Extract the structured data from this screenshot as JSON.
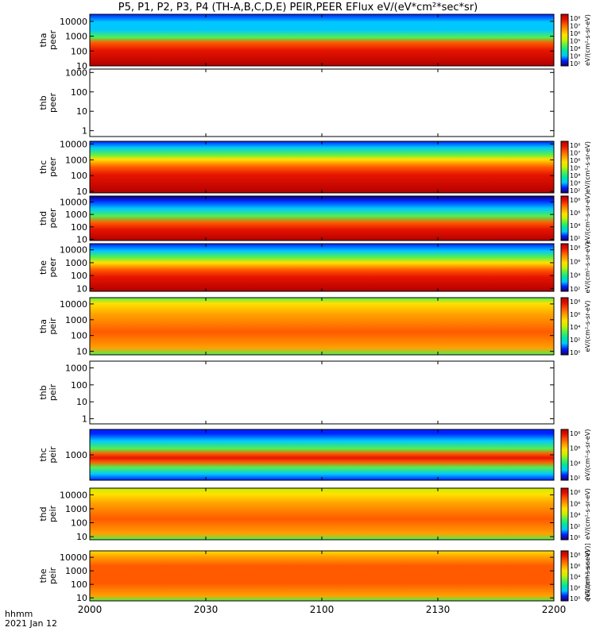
{
  "chart_data": {
    "type": "heatmap",
    "title": "P5, P1, P2, P3, P4 (TH-A,B,C,D,E) PEIR,PEER EFlux eV/(eV*cm²*sec*sr)",
    "x_axis": {
      "range": [
        "20:00",
        "22:00"
      ],
      "tick_labels": [
        "2000",
        "2030",
        "2100",
        "2130",
        "2200"
      ],
      "tick_minutes": [
        0,
        30,
        60,
        90,
        120
      ]
    },
    "annotations": {
      "time_label": "hhmm",
      "date_label": "2021 Jan 12"
    },
    "panels": [
      {
        "probe": "tha",
        "species": "peer",
        "ylabel": [
          "tha",
          "peer"
        ],
        "has_data": true,
        "y_log_range": [
          10,
          30000
        ],
        "yticks": [
          "10",
          "100",
          "1000",
          "10000"
        ],
        "colorbar": {
          "label": "eV/(cm²-s-sr-eV)",
          "ticks": [
            "10²",
            "10³",
            "10⁴",
            "10⁵",
            "10⁶",
            "10⁷",
            "10⁸"
          ]
        }
      },
      {
        "probe": "thb",
        "species": "peer",
        "ylabel": [
          "thb",
          "peer"
        ],
        "has_data": false,
        "y_log_range": [
          0.5,
          1500
        ],
        "yticks": [
          "1",
          "10",
          "100",
          "1000"
        ]
      },
      {
        "probe": "thc",
        "species": "peer",
        "ylabel": [
          "thc",
          "peer"
        ],
        "has_data": true,
        "y_log_range": [
          8,
          15000
        ],
        "yticks": [
          "10",
          "100",
          "1000",
          "10000"
        ],
        "colorbar": {
          "label": "eV/(cm²-s-sr-eV)",
          "ticks": [
            "10²",
            "10³",
            "10⁴",
            "10⁵",
            "10⁶",
            "10⁷",
            "10⁸"
          ]
        }
      },
      {
        "probe": "thd",
        "species": "peer",
        "ylabel": [
          "thd",
          "peer"
        ],
        "has_data": true,
        "y_log_range": [
          8,
          30000
        ],
        "yticks": [
          "10",
          "100",
          "1000",
          "10000"
        ],
        "colorbar": {
          "label": "eV/(cm²-s-sr-eV)",
          "ticks": [
            "10²",
            "10⁴",
            "10⁶",
            "10⁸"
          ]
        }
      },
      {
        "probe": "the",
        "species": "peer",
        "ylabel": [
          "the",
          "peer"
        ],
        "has_data": true,
        "y_log_range": [
          6,
          30000
        ],
        "yticks": [
          "10",
          "100",
          "1000",
          "10000"
        ],
        "colorbar": {
          "label": "eV/(cm²-s-sr-eV)",
          "ticks": [
            "10²",
            "10⁴",
            "10⁶",
            "10⁸"
          ]
        }
      },
      {
        "probe": "tha",
        "species": "peir",
        "ylabel": [
          "tha",
          "peir"
        ],
        "has_data": true,
        "y_log_range": [
          6,
          25000
        ],
        "yticks": [
          "10",
          "100",
          "1000",
          "10000"
        ],
        "colorbar": {
          "label": "eV/(cm²-s-sr-eV)",
          "ticks": [
            "10⁰",
            "10²",
            "10⁴",
            "10⁶",
            "10⁸"
          ]
        }
      },
      {
        "probe": "thb",
        "species": "peir",
        "ylabel": [
          "thb",
          "peir"
        ],
        "has_data": false,
        "y_log_range": [
          0.5,
          2500
        ],
        "yticks": [
          "1",
          "10",
          "100",
          "1000"
        ]
      },
      {
        "probe": "thc",
        "species": "peir",
        "ylabel": [
          "thc",
          "peir"
        ],
        "has_data": true,
        "y_log_range": [
          200,
          5000
        ],
        "yticks": [
          "1000"
        ],
        "colorbar": {
          "label": "eV/(cm²-s-sr-eV)",
          "ticks": [
            "10²",
            "10⁴",
            "10⁶",
            "10⁸"
          ]
        }
      },
      {
        "probe": "thd",
        "species": "peir",
        "ylabel": [
          "thd",
          "peir"
        ],
        "has_data": true,
        "y_log_range": [
          6,
          30000
        ],
        "yticks": [
          "10",
          "100",
          "1000",
          "10000"
        ],
        "colorbar": {
          "label": "eV/(cm²-s-sr-eV)",
          "ticks": [
            "10⁰",
            "10²",
            "10⁴",
            "10⁶",
            "10⁸"
          ]
        }
      },
      {
        "probe": "the",
        "species": "peir",
        "ylabel": [
          "the",
          "peir"
        ],
        "has_data": true,
        "y_log_range": [
          6,
          30000
        ],
        "yticks": [
          "10",
          "100",
          "1000",
          "10000"
        ],
        "colorbar": {
          "label": "eV/(cm²-s-sr-eV)",
          "ticks": [
            "10⁰",
            "10²",
            "10⁴",
            "10⁶",
            "10⁸"
          ]
        }
      }
    ],
    "bottom_colorbar_label": "[eV/(cm²-s-sr-eV)]",
    "colormap": [
      "#1a0066",
      "#0022ff",
      "#00c8ff",
      "#00e6a0",
      "#50f050",
      "#c8f000",
      "#ffe100",
      "#ffa000",
      "#ff5a00",
      "#e61400",
      "#b40000"
    ]
  }
}
